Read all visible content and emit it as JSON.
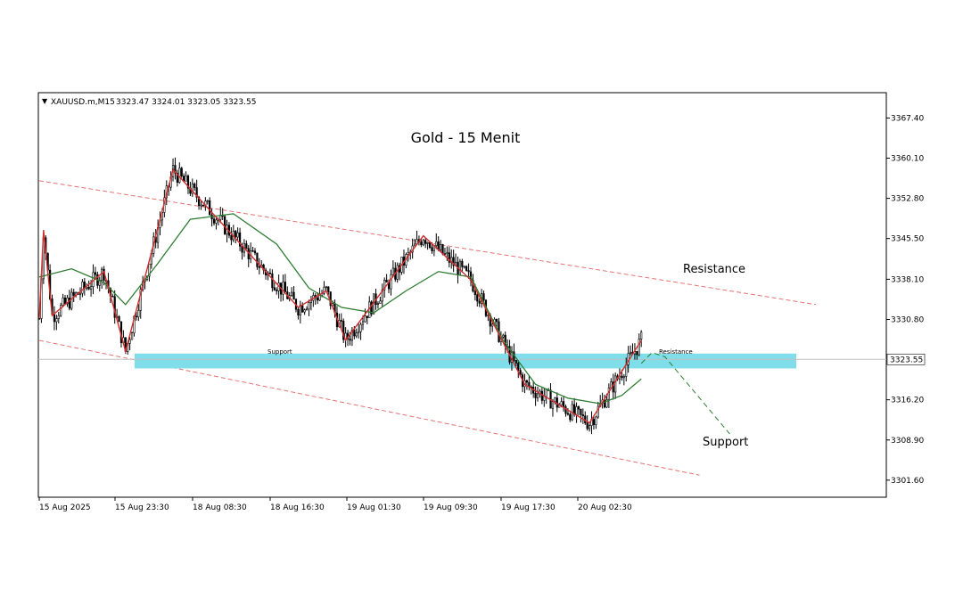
{
  "header": {
    "symbol": "XAUUSD.m,M15",
    "ohlc": "3323.47 3324.01 3323.05 3323.55"
  },
  "annotations": {
    "title": "Gold - 15 Menit",
    "resistance_label": "Resistance",
    "support_label": "Support",
    "band_support_label": "Support",
    "band_resistance_label": "Resistance"
  },
  "colors": {
    "candle": "#000000",
    "ma": "#2e7d32",
    "zigzag": "#d32f2f",
    "channel": "#e57373",
    "support_band": "#80deea",
    "price_line": "#c0c0c0",
    "projection": "#2e7d32"
  },
  "chart_data": {
    "type": "candlestick",
    "symbol": "XAUUSD.m",
    "timeframe": "M15",
    "title": "Gold - 15 Menit",
    "ylim": [
      3298.5,
      3372.0
    ],
    "y_ticks": [
      3367.4,
      3360.1,
      3352.8,
      3345.5,
      3338.1,
      3330.8,
      3316.2,
      3308.9,
      3301.6
    ],
    "current_price": 3323.55,
    "x_ticks": [
      "15 Aug 2025",
      "15 Aug 23:30",
      "18 Aug 08:30",
      "18 Aug 16:30",
      "19 Aug 01:30",
      "19 Aug 09:30",
      "19 Aug 17:30",
      "20 Aug 02:30"
    ],
    "n_bars": 280,
    "zigzag": [
      {
        "bar": 0,
        "price": 3331.0
      },
      {
        "bar": 2,
        "price": 3347.0
      },
      {
        "bar": 6,
        "price": 3331.5
      },
      {
        "bar": 30,
        "price": 3339.5
      },
      {
        "bar": 40,
        "price": 3325.0
      },
      {
        "bar": 62,
        "price": 3358.0
      },
      {
        "bar": 120,
        "price": 3333.0
      },
      {
        "bar": 133,
        "price": 3336.0
      },
      {
        "bar": 142,
        "price": 3327.0
      },
      {
        "bar": 178,
        "price": 3346.0
      },
      {
        "bar": 200,
        "price": 3338.0
      },
      {
        "bar": 225,
        "price": 3319.0
      },
      {
        "bar": 255,
        "price": 3312.0
      },
      {
        "bar": 279,
        "price": 3327.0
      }
    ],
    "ma": [
      {
        "bar": 0,
        "price": 3338.5
      },
      {
        "bar": 15,
        "price": 3340.0
      },
      {
        "bar": 30,
        "price": 3337.5
      },
      {
        "bar": 40,
        "price": 3333.5
      },
      {
        "bar": 55,
        "price": 3341.0
      },
      {
        "bar": 70,
        "price": 3349.0
      },
      {
        "bar": 90,
        "price": 3350.0
      },
      {
        "bar": 110,
        "price": 3344.5
      },
      {
        "bar": 125,
        "price": 3336.5
      },
      {
        "bar": 140,
        "price": 3333.0
      },
      {
        "bar": 155,
        "price": 3332.0
      },
      {
        "bar": 170,
        "price": 3336.0
      },
      {
        "bar": 185,
        "price": 3339.5
      },
      {
        "bar": 200,
        "price": 3338.5
      },
      {
        "bar": 215,
        "price": 3327.0
      },
      {
        "bar": 230,
        "price": 3319.0
      },
      {
        "bar": 245,
        "price": 3316.5
      },
      {
        "bar": 260,
        "price": 3315.5
      },
      {
        "bar": 270,
        "price": 3317.0
      },
      {
        "bar": 279,
        "price": 3320.0
      }
    ],
    "channel_upper": [
      {
        "bar": 0,
        "price": 3356.0
      },
      {
        "bar": 360,
        "price": 3333.5
      }
    ],
    "channel_lower": [
      {
        "bar": 0,
        "price": 3327.0
      },
      {
        "bar": 306,
        "price": 3302.5
      }
    ],
    "support_zone": [
      3321.9,
      3324.6
    ],
    "projection": [
      {
        "bar": 279,
        "price": 3322.8
      },
      {
        "bar": 284,
        "price": 3324.8
      },
      {
        "bar": 290,
        "price": 3324.0
      },
      {
        "bar": 320,
        "price": 3310.0
      }
    ]
  }
}
